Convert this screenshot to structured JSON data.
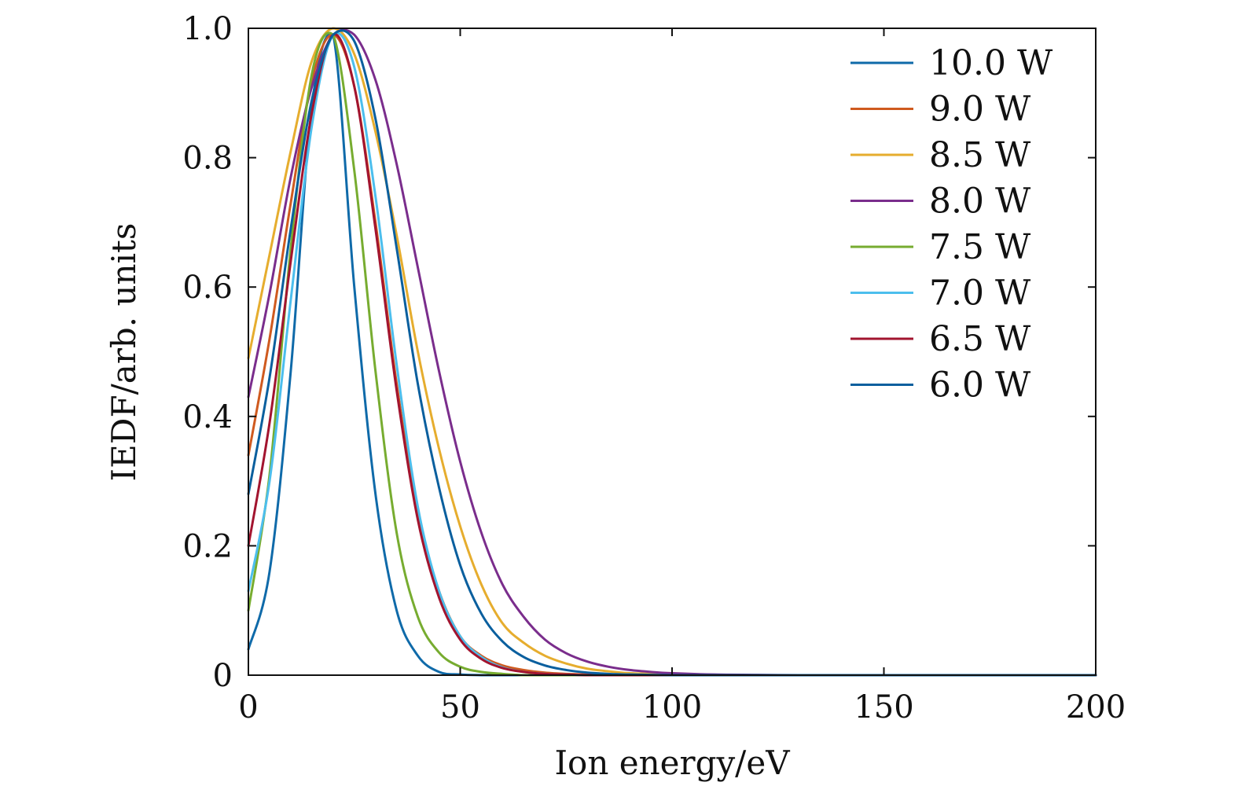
{
  "chart_data": {
    "type": "line",
    "title": "",
    "xlabel": "Ion energy/eV",
    "ylabel": "IEDF/arb. units",
    "xlim": [
      0,
      200
    ],
    "ylim": [
      0,
      1.0
    ],
    "xticks": [
      0,
      50,
      100,
      150,
      200
    ],
    "xtick_labels": [
      "0",
      "50",
      "100",
      "150",
      "200"
    ],
    "yticks": [
      0,
      0.2,
      0.4,
      0.6,
      0.8,
      1.0
    ],
    "ytick_labels": [
      "0",
      "0.2",
      "0.4",
      "0.6",
      "0.8",
      "1.0"
    ],
    "grid": false,
    "legend_position": "top-right",
    "x": [
      0,
      5,
      10,
      15,
      20,
      25,
      30,
      35,
      40,
      45,
      50,
      55,
      60,
      65,
      70,
      75,
      80,
      85,
      90,
      95,
      100,
      110,
      120,
      130,
      140,
      150,
      160,
      170,
      180,
      190,
      200
    ],
    "series": [
      {
        "name": "10.0 W",
        "color": "#0f6aa9",
        "values": [
          0.04,
          0.16,
          0.47,
          0.88,
          0.99,
          0.6,
          0.28,
          0.1,
          0.03,
          0.005,
          0.001,
          0,
          0,
          0,
          0,
          0,
          0,
          0,
          0,
          0,
          0,
          0,
          0,
          0,
          0,
          0,
          0,
          0,
          0,
          0,
          0
        ]
      },
      {
        "name": "9.0 W",
        "color": "#cf5a1f",
        "values": [
          0.34,
          0.52,
          0.73,
          0.92,
          0.99,
          0.91,
          0.7,
          0.45,
          0.25,
          0.13,
          0.06,
          0.03,
          0.015,
          0.008,
          0.004,
          0.002,
          0.001,
          0,
          0,
          0,
          0,
          0,
          0,
          0,
          0,
          0,
          0,
          0,
          0,
          0,
          0
        ]
      },
      {
        "name": "8.5 W",
        "color": "#e6ad2e",
        "values": [
          0.49,
          0.65,
          0.81,
          0.95,
          1.0,
          0.96,
          0.84,
          0.68,
          0.5,
          0.35,
          0.23,
          0.14,
          0.08,
          0.05,
          0.03,
          0.018,
          0.01,
          0.006,
          0.003,
          0.002,
          0.001,
          0,
          0,
          0,
          0,
          0,
          0,
          0,
          0,
          0,
          0
        ]
      },
      {
        "name": "8.0 W",
        "color": "#7a2d8c",
        "values": [
          0.43,
          0.59,
          0.77,
          0.91,
          0.99,
          0.99,
          0.92,
          0.79,
          0.63,
          0.47,
          0.33,
          0.22,
          0.14,
          0.09,
          0.055,
          0.034,
          0.021,
          0.013,
          0.008,
          0.005,
          0.003,
          0.001,
          0.0005,
          0,
          0,
          0,
          0,
          0,
          0,
          0,
          0
        ]
      },
      {
        "name": "7.5 W",
        "color": "#77ac30",
        "values": [
          0.1,
          0.31,
          0.66,
          0.93,
          0.99,
          0.78,
          0.47,
          0.22,
          0.09,
          0.035,
          0.013,
          0.005,
          0.002,
          0,
          0,
          0,
          0,
          0,
          0,
          0,
          0,
          0,
          0,
          0,
          0,
          0,
          0,
          0,
          0,
          0,
          0
        ]
      },
      {
        "name": "7.0 W",
        "color": "#4cbeed",
        "values": [
          0.13,
          0.3,
          0.58,
          0.85,
          0.99,
          0.94,
          0.74,
          0.48,
          0.26,
          0.13,
          0.06,
          0.028,
          0.012,
          0.005,
          0.002,
          0.001,
          0,
          0,
          0,
          0,
          0,
          0,
          0,
          0,
          0,
          0,
          0,
          0,
          0,
          0,
          0
        ]
      },
      {
        "name": "6.5 W",
        "color": "#a2142f",
        "values": [
          0.2,
          0.39,
          0.64,
          0.87,
          0.99,
          0.91,
          0.69,
          0.44,
          0.24,
          0.12,
          0.055,
          0.025,
          0.011,
          0.005,
          0.002,
          0.001,
          0,
          0,
          0,
          0,
          0,
          0,
          0,
          0,
          0,
          0,
          0,
          0,
          0,
          0,
          0
        ]
      },
      {
        "name": "6.0 W",
        "color": "#0a5f9e",
        "values": [
          0.28,
          0.46,
          0.69,
          0.89,
          0.99,
          0.98,
          0.86,
          0.66,
          0.45,
          0.29,
          0.17,
          0.095,
          0.052,
          0.028,
          0.015,
          0.008,
          0.004,
          0.002,
          0.001,
          0.0005,
          0,
          0,
          0,
          0,
          0,
          0,
          0,
          0,
          0,
          0,
          0
        ]
      }
    ]
  }
}
